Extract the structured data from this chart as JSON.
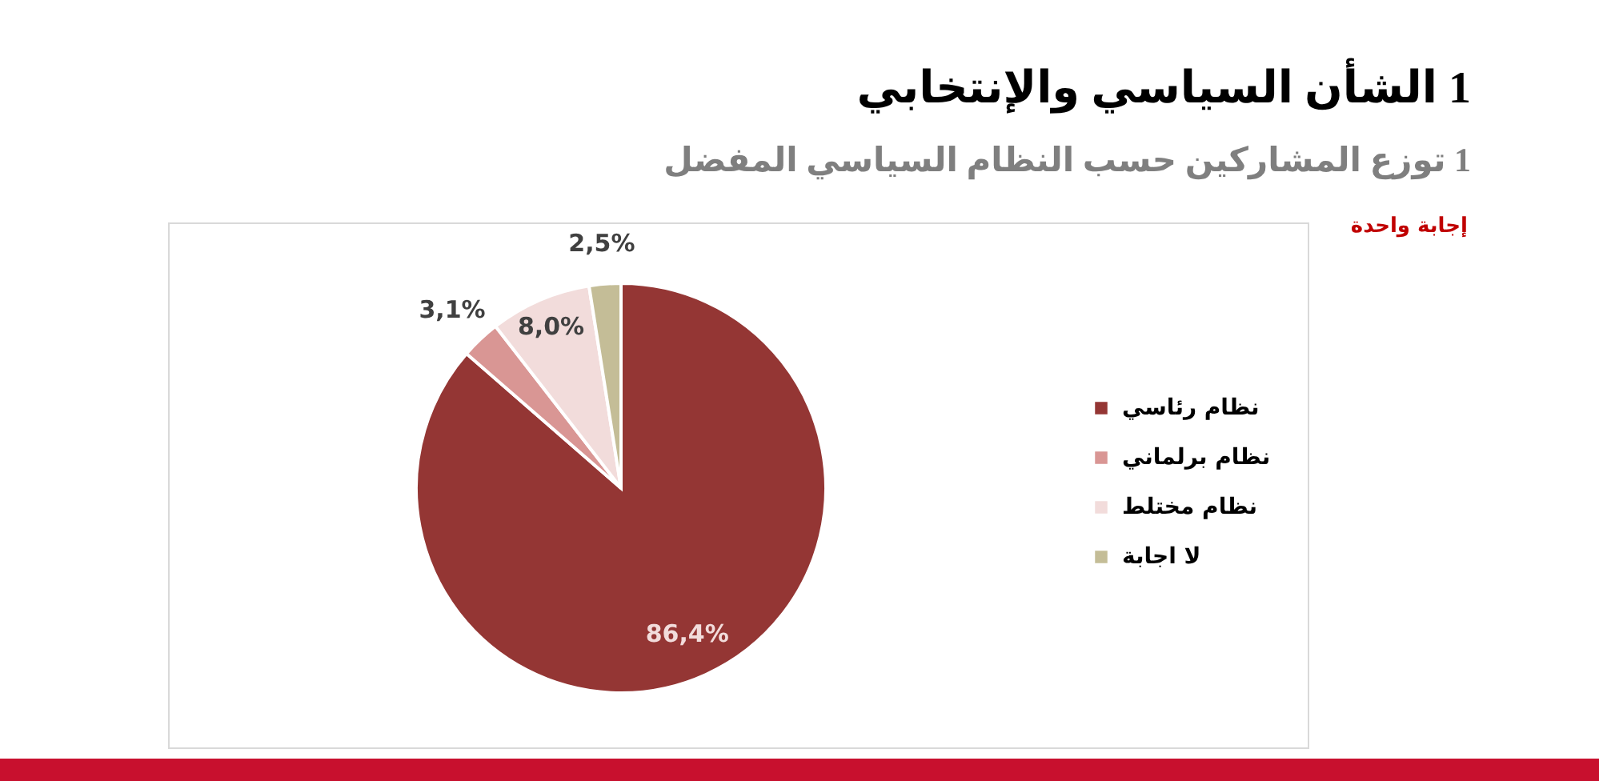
{
  "chart_data": {
    "type": "pie",
    "title": "1 الشأن السياسي والإنتخابي",
    "subtitle": "1 توزع المشاركين حسب النظام السياسي المفضل",
    "annotations": [
      "إجابة واحدة"
    ],
    "categories": [
      "نظام رئاسي",
      "نظام برلماني",
      "نظام مختلط",
      "لا اجابة"
    ],
    "values": [
      86.4,
      3.1,
      8.0,
      2.5
    ],
    "colors": [
      "#943634",
      "#d99694",
      "#f2dcdb",
      "#c4bd97"
    ],
    "value_labels": [
      "86,4%",
      "3,1%",
      "8,0%",
      "2,5%"
    ],
    "legend": "right"
  }
}
